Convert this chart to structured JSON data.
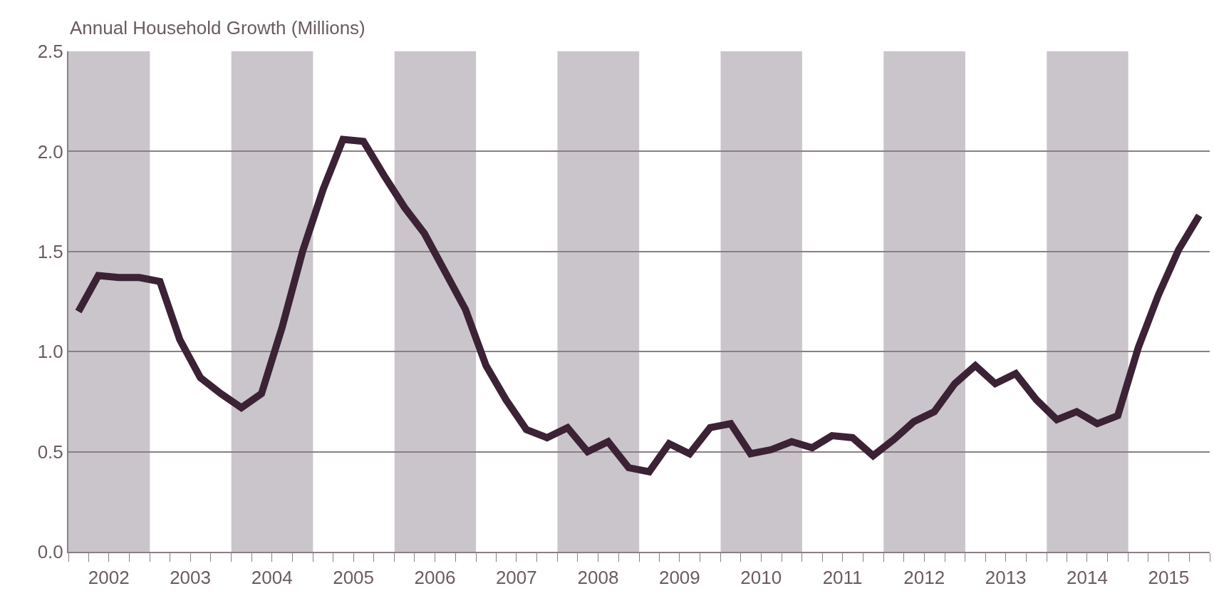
{
  "chart_data": {
    "type": "line",
    "ylabel": "Annual Household Growth (Millions)",
    "x": [
      "2002-02-15",
      "2002-05-15",
      "2002-08-15",
      "2002-11-15",
      "2003-02-15",
      "2003-05-15",
      "2003-08-15",
      "2003-11-15",
      "2004-02-15",
      "2004-05-15",
      "2004-08-15",
      "2004-11-15",
      "2005-02-15",
      "2005-05-15",
      "2005-08-15",
      "2005-11-15",
      "2006-02-15",
      "2006-05-15",
      "2006-08-15",
      "2006-11-15",
      "2007-02-15",
      "2007-05-15",
      "2007-08-15",
      "2007-11-15",
      "2008-02-15",
      "2008-05-15",
      "2008-08-15",
      "2008-11-15",
      "2009-02-15",
      "2009-05-15",
      "2009-08-15",
      "2009-11-15",
      "2010-02-15",
      "2010-05-15",
      "2010-08-15",
      "2010-11-15",
      "2011-02-15",
      "2011-05-15",
      "2011-08-15",
      "2011-11-15",
      "2012-02-15",
      "2012-05-15",
      "2012-08-15",
      "2012-11-15",
      "2013-02-15",
      "2013-05-15",
      "2013-08-15",
      "2013-11-15",
      "2014-02-15",
      "2014-05-15",
      "2014-08-15",
      "2014-11-15",
      "2015-02-15",
      "2015-05-15",
      "2015-08-15",
      "2015-11-15"
    ],
    "series": [
      {
        "color": "#3b2235",
        "values": [
          1.2,
          1.38,
          1.37,
          1.37,
          1.35,
          1.06,
          0.87,
          0.79,
          0.72,
          0.79,
          1.12,
          1.5,
          1.81,
          2.06,
          2.05,
          1.88,
          1.72,
          1.59,
          1.4,
          1.21,
          0.93,
          0.76,
          0.61,
          0.57,
          0.62,
          0.5,
          0.55,
          0.42,
          0.4,
          0.54,
          0.49,
          0.62,
          0.64,
          0.49,
          0.51,
          0.55,
          0.52,
          0.58,
          0.57,
          0.48,
          0.56,
          0.65,
          0.7,
          0.84,
          0.93,
          0.84,
          0.89,
          0.76,
          0.66,
          0.7,
          0.64,
          0.68,
          1.02,
          1.28,
          1.51,
          1.68
        ]
      }
    ],
    "xlim": [
      "2002-01-01",
      "2016-01-01"
    ],
    "xticks": [
      {
        "value": "2002-01-01",
        "label": null
      },
      {
        "value": "2002-04-01",
        "label": null
      },
      {
        "value": "2002-07-01",
        "label": "2002"
      },
      {
        "value": "2002-10-01",
        "label": null
      },
      {
        "value": "2003-01-01",
        "label": null
      },
      {
        "value": "2003-04-01",
        "label": null
      },
      {
        "value": "2003-07-01",
        "label": "2003"
      },
      {
        "value": "2003-10-01",
        "label": null
      },
      {
        "value": "2004-01-01",
        "label": null
      },
      {
        "value": "2004-04-01",
        "label": null
      },
      {
        "value": "2004-07-01",
        "label": "2004"
      },
      {
        "value": "2004-10-01",
        "label": null
      },
      {
        "value": "2005-01-01",
        "label": null
      },
      {
        "value": "2005-04-01",
        "label": null
      },
      {
        "value": "2005-07-01",
        "label": "2005"
      },
      {
        "value": "2005-10-01",
        "label": null
      },
      {
        "value": "2006-01-01",
        "label": null
      },
      {
        "value": "2006-04-01",
        "label": null
      },
      {
        "value": "2006-07-01",
        "label": "2006"
      },
      {
        "value": "2006-10-01",
        "label": null
      },
      {
        "value": "2007-01-01",
        "label": null
      },
      {
        "value": "2007-04-01",
        "label": null
      },
      {
        "value": "2007-07-01",
        "label": "2007"
      },
      {
        "value": "2007-10-01",
        "label": null
      },
      {
        "value": "2008-01-01",
        "label": null
      },
      {
        "value": "2008-04-01",
        "label": null
      },
      {
        "value": "2008-07-01",
        "label": "2008"
      },
      {
        "value": "2008-10-01",
        "label": null
      },
      {
        "value": "2009-01-01",
        "label": null
      },
      {
        "value": "2009-04-01",
        "label": null
      },
      {
        "value": "2009-07-01",
        "label": "2009"
      },
      {
        "value": "2009-10-01",
        "label": null
      },
      {
        "value": "2010-01-01",
        "label": null
      },
      {
        "value": "2010-04-01",
        "label": null
      },
      {
        "value": "2010-07-01",
        "label": "2010"
      },
      {
        "value": "2010-10-01",
        "label": null
      },
      {
        "value": "2011-01-01",
        "label": null
      },
      {
        "value": "2011-04-01",
        "label": null
      },
      {
        "value": "2011-07-01",
        "label": "2011"
      },
      {
        "value": "2011-10-01",
        "label": null
      },
      {
        "value": "2012-01-01",
        "label": null
      },
      {
        "value": "2012-04-01",
        "label": null
      },
      {
        "value": "2012-07-01",
        "label": "2012"
      },
      {
        "value": "2012-10-01",
        "label": null
      },
      {
        "value": "2013-01-01",
        "label": null
      },
      {
        "value": "2013-04-01",
        "label": null
      },
      {
        "value": "2013-07-01",
        "label": "2013"
      },
      {
        "value": "2013-10-01",
        "label": null
      },
      {
        "value": "2014-01-01",
        "label": null
      },
      {
        "value": "2014-04-01",
        "label": null
      },
      {
        "value": "2014-07-01",
        "label": "2014"
      },
      {
        "value": "2014-10-01",
        "label": null
      },
      {
        "value": "2015-01-01",
        "label": null
      },
      {
        "value": "2015-04-01",
        "label": null
      },
      {
        "value": "2015-07-01",
        "label": "2015"
      },
      {
        "value": "2015-10-01",
        "label": null
      },
      {
        "value": "2016-01-01",
        "label": null
      }
    ],
    "ylim": [
      0,
      2.5
    ],
    "yticks": [
      {
        "value": 0,
        "label": "0.0"
      },
      {
        "value": 0.5,
        "label": "0.5"
      },
      {
        "value": 1,
        "label": "1.0"
      },
      {
        "value": 1.5,
        "label": "1.5"
      },
      {
        "value": 2,
        "label": "2.0"
      },
      {
        "value": 2.5,
        "label": "2.5"
      }
    ],
    "grid": "y",
    "bands": [
      {
        "axis": "x",
        "from": "2002-01-01",
        "to": "2003-01-01",
        "color": "#cac5ca"
      },
      {
        "axis": "x",
        "from": "2004-01-01",
        "to": "2005-01-01",
        "color": "#cac5ca"
      },
      {
        "axis": "x",
        "from": "2006-01-01",
        "to": "2007-01-01",
        "color": "#cac5ca"
      },
      {
        "axis": "x",
        "from": "2008-01-01",
        "to": "2009-01-01",
        "color": "#cac5ca"
      },
      {
        "axis": "x",
        "from": "2010-01-01",
        "to": "2011-01-01",
        "color": "#cac5ca"
      },
      {
        "axis": "x",
        "from": "2012-01-01",
        "to": "2013-01-01",
        "color": "#cac5ca"
      },
      {
        "axis": "x",
        "from": "2014-01-01",
        "to": "2015-01-01",
        "color": "#cac5ca"
      }
    ]
  }
}
